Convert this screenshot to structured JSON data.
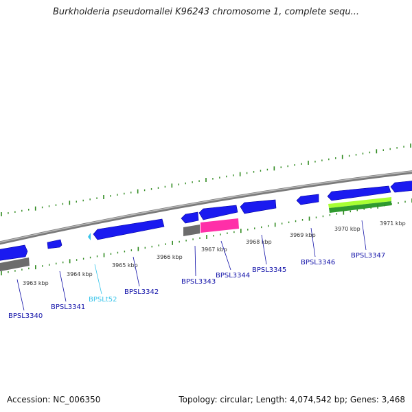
{
  "title": "Burkholderia pseudomallei K96243 chromosome 1, complete sequ...",
  "footer": {
    "accession": "Accession: NC_006350",
    "summary": "Topology: circular; Length: 4,074,542 bp; Genes: 3,468"
  },
  "colors": {
    "backbone": "#8c8c8c",
    "cds_forward": "#1a1af0",
    "gene_label": "#1010a8",
    "trna": "#37c4ea",
    "gray_feature": "#6c6c6c",
    "pink_feature": "#ff2fa8",
    "green_light": "#a8ff33",
    "green_dark": "#2f9a2f",
    "tick_green": "#2f8a1f"
  },
  "scale_labels": [
    "3963 kbp",
    "3964 kbp",
    "3965 kbp",
    "3966 kbp",
    "3967 kbp",
    "3968 kbp",
    "3969 kbp",
    "3970 kbp",
    "3971 kbp"
  ],
  "genes": [
    {
      "name": "BPSL3340",
      "type": "cds"
    },
    {
      "name": "BPSL3341",
      "type": "cds"
    },
    {
      "name": "BPSLt52",
      "type": "trna"
    },
    {
      "name": "BPSL3342",
      "type": "cds"
    },
    {
      "name": "BPSL3343",
      "type": "cds"
    },
    {
      "name": "BPSL3344",
      "type": "cds"
    },
    {
      "name": "BPSL3345",
      "type": "cds"
    },
    {
      "name": "BPSL3346",
      "type": "cds"
    },
    {
      "name": "BPSL3347",
      "type": "cds"
    }
  ]
}
